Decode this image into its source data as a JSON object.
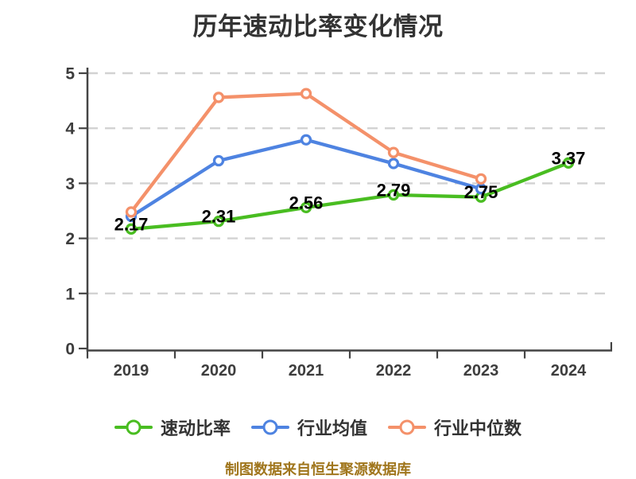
{
  "title": "历年速动比率变化情况",
  "footer": "制图数据来自恒生聚源数据库",
  "colors": {
    "quick_ratio": "#49bd21",
    "industry_avg": "#4e83e1",
    "industry_median": "#f4916a",
    "grid_line": "#d2d2d2",
    "axis_line": "#444444",
    "axis_text": "#3d3d3d",
    "value_label": "#000000",
    "title_text": "#333333",
    "legend_text": "#333333",
    "footer_text": "#a0761d",
    "background": "#ffffff"
  },
  "chart_data": {
    "type": "line",
    "title": "历年速动比率变化情况",
    "x": [
      "2019",
      "2020",
      "2021",
      "2022",
      "2023",
      "2024"
    ],
    "series": [
      {
        "name": "速动比率",
        "color_key": "quick_ratio",
        "values": [
          2.17,
          2.31,
          2.56,
          2.79,
          2.75,
          3.37
        ],
        "labels": [
          "2.17",
          "2.31",
          "2.56",
          "2.79",
          "2.75",
          "3.37"
        ]
      },
      {
        "name": "行业均值",
        "color_key": "industry_avg",
        "values": [
          2.4,
          3.41,
          3.79,
          3.36,
          2.9,
          null
        ]
      },
      {
        "name": "行业中位数",
        "color_key": "industry_median",
        "values": [
          2.48,
          4.56,
          4.63,
          3.56,
          3.08,
          null
        ]
      }
    ],
    "ylim": [
      0,
      5
    ],
    "y_ticks": [
      "0",
      "1",
      "2",
      "3",
      "4",
      "5"
    ],
    "grid": "horizontal-dashed",
    "legend_position": "bottom",
    "marker": "open-circle"
  }
}
